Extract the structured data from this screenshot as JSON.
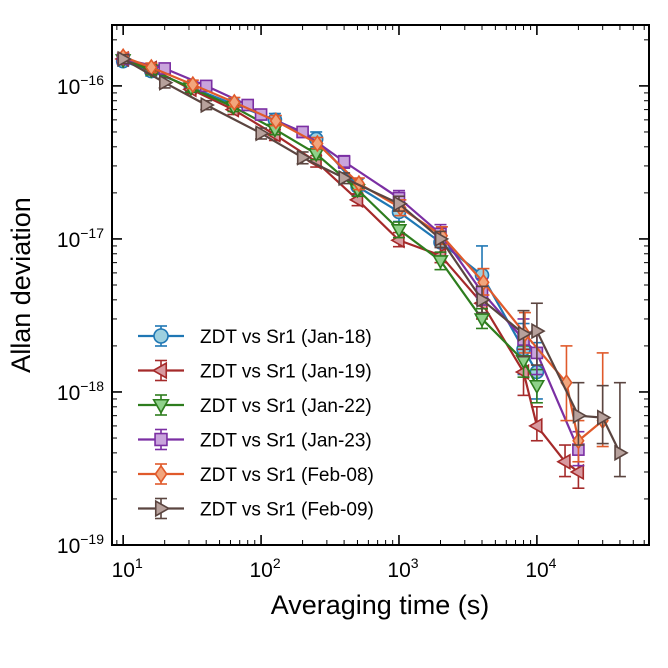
{
  "chart_data": {
    "type": "scatter",
    "title": "",
    "xlabel": "Averaging time (s)",
    "ylabel": "Allan deviation",
    "xscale": "log",
    "yscale": "log",
    "xlim": [
      8.3,
      65000
    ],
    "ylim": [
      1e-19,
      2.5e-16
    ],
    "x_ticks": [
      {
        "value": 10,
        "base": "10",
        "exp": "1"
      },
      {
        "value": 100,
        "base": "10",
        "exp": "2"
      },
      {
        "value": 1000,
        "base": "10",
        "exp": "3"
      },
      {
        "value": 10000,
        "base": "10",
        "exp": "4"
      }
    ],
    "y_ticks": [
      {
        "value": 1e-19,
        "base": "10",
        "exp": "−19"
      },
      {
        "value": 1e-18,
        "base": "10",
        "exp": "−18"
      },
      {
        "value": 1e-17,
        "base": "10",
        "exp": "−17"
      },
      {
        "value": 1e-16,
        "base": "10",
        "exp": "−16"
      }
    ],
    "legend_position": "lower-left",
    "series": [
      {
        "name": "ZDT vs Sr1 (Jan-18)",
        "color": "#1f77b4",
        "face": "#9dd0df",
        "marker": "circle",
        "x": [
          10,
          16,
          31,
          63,
          126,
          251,
          501,
          1000,
          2000,
          4000,
          8000,
          10000
        ],
        "y": [
          1.45e-16,
          1.25e-16,
          9.8e-17,
          7.6e-17,
          6e-17,
          4.5e-17,
          2.2e-17,
          1.5e-17,
          9.5e-18,
          5.8e-18,
          1.9e-18,
          1.35e-18
        ],
        "yerr_low": [
          1.35e-16,
          1.16e-16,
          9.2e-17,
          7e-17,
          5.4e-17,
          4e-17,
          1.95e-17,
          1.3e-17,
          8e-18,
          4e-18,
          1.3e-18,
          9e-19
        ],
        "yerr_high": [
          1.55e-16,
          1.34e-16,
          1.05e-16,
          8.2e-17,
          6.6e-17,
          5e-17,
          2.45e-17,
          1.75e-17,
          1.15e-17,
          9e-18,
          2.8e-18,
          2.1e-18
        ]
      },
      {
        "name": "ZDT vs Sr1 (Jan-19)",
        "color": "#a52a2a",
        "face": "#d8999f",
        "marker": "triangle-left",
        "x": [
          10,
          16,
          31,
          63,
          126,
          251,
          501,
          1000,
          2000,
          4000,
          8000,
          10000,
          16000,
          20000
        ],
        "y": [
          1.5e-16,
          1.3e-16,
          9.5e-17,
          7e-17,
          4.8e-17,
          3.2e-17,
          1.8e-17,
          9.8e-18,
          7.8e-18,
          3.8e-18,
          1.35e-18,
          6e-19,
          3.5e-19,
          3e-19
        ],
        "yerr_low": [
          1.4e-16,
          1.21e-16,
          8.9e-17,
          6.5e-17,
          4.4e-17,
          2.95e-17,
          1.65e-17,
          8.9e-18,
          7e-18,
          3e-18,
          9.5e-19,
          4.8e-19,
          2.8e-19,
          2.35e-19
        ],
        "yerr_high": [
          1.6e-16,
          1.4e-16,
          1.02e-16,
          7.6e-17,
          5.2e-17,
          3.5e-17,
          1.97e-17,
          1.1e-17,
          8.8e-18,
          4.8e-18,
          1.9e-18,
          8e-19,
          4.5e-19,
          3.9e-19
        ]
      },
      {
        "name": "ZDT vs Sr1 (Jan-22)",
        "color": "#2e7d1e",
        "face": "#8fd18a",
        "marker": "triangle-down",
        "x": [
          10,
          16,
          31,
          63,
          126,
          251,
          501,
          1000,
          2000,
          4000,
          8000,
          10000
        ],
        "y": [
          1.48e-16,
          1.27e-16,
          9.7e-17,
          7.3e-17,
          5.2e-17,
          3.6e-17,
          2.1e-17,
          1.15e-17,
          7.2e-18,
          3e-18,
          1.6e-18,
          1.1e-18
        ],
        "yerr_low": [
          1.38e-16,
          1.18e-16,
          9.1e-17,
          6.8e-17,
          4.8e-17,
          3.3e-17,
          1.9e-17,
          1.02e-17,
          6.3e-18,
          2.6e-18,
          1.25e-18,
          8.5e-19
        ],
        "yerr_high": [
          1.58e-16,
          1.36e-16,
          1.04e-16,
          7.9e-17,
          5.6e-17,
          3.9e-17,
          2.3e-17,
          1.29e-17,
          8.2e-18,
          3.5e-18,
          2e-18,
          1.4e-18
        ]
      },
      {
        "name": "ZDT vs Sr1 (Jan-23)",
        "color": "#7b2fa3",
        "face": "#c9a4dc",
        "marker": "square",
        "x": [
          10,
          20,
          40,
          80,
          100,
          200,
          400,
          1000,
          2000,
          4000,
          8000,
          10000,
          20000
        ],
        "y": [
          1.5e-16,
          1.3e-16,
          1e-16,
          7.5e-17,
          6.5e-17,
          5e-17,
          3.2e-17,
          1.85e-17,
          1.08e-17,
          4.5e-18,
          2.2e-18,
          1.8e-18,
          4.2e-19
        ],
        "yerr_low": [
          1.4e-16,
          1.21e-16,
          9.4e-17,
          7e-17,
          6e-17,
          4.6e-17,
          2.9e-17,
          1.65e-17,
          9.4e-18,
          3.7e-18,
          1.7e-18,
          1.3e-18,
          3.3e-19
        ],
        "yerr_high": [
          1.6e-16,
          1.4e-16,
          1.07e-16,
          8e-17,
          7e-17,
          5.4e-17,
          3.5e-17,
          2.07e-17,
          1.24e-17,
          5.5e-18,
          3e-18,
          2.5e-18,
          5.5e-19
        ]
      },
      {
        "name": "ZDT vs Sr1 (Feb-08)",
        "color": "#e05a2b",
        "face": "#f2a57c",
        "marker": "diamond",
        "x": [
          10,
          16,
          32,
          64,
          128,
          256,
          512,
          1024,
          2048,
          4096,
          8192,
          16384,
          20000,
          30000
        ],
        "y": [
          1.55e-16,
          1.32e-16,
          1.02e-16,
          7.8e-17,
          5.9e-17,
          4.2e-17,
          2.3e-17,
          1.6e-17,
          1.05e-17,
          5.2e-18,
          2.4e-18,
          1.15e-18,
          4.8e-19,
          6.5e-19
        ],
        "yerr_low": [
          1.45e-16,
          1.23e-16,
          9.6e-17,
          7.3e-17,
          5.5e-17,
          3.9e-17,
          2.1e-17,
          1.42e-17,
          9.2e-18,
          4.3e-18,
          1.8e-18,
          6.5e-19,
          3.5e-19,
          4.4e-19
        ],
        "yerr_high": [
          1.65e-16,
          1.41e-16,
          1.09e-16,
          8.4e-17,
          6.4e-17,
          4.6e-17,
          2.5e-17,
          1.8e-17,
          1.2e-17,
          6.4e-18,
          3.3e-18,
          2e-18,
          6.5e-19,
          1.8e-18
        ]
      },
      {
        "name": "ZDT vs Sr1 (Feb-09)",
        "color": "#5b4540",
        "face": "#b7a19c",
        "marker": "triangle-right",
        "x": [
          10,
          20,
          40,
          100,
          200,
          400,
          1000,
          2000,
          4000,
          8000,
          10000,
          20000,
          30000,
          40000
        ],
        "y": [
          1.5e-16,
          1.05e-16,
          7.5e-17,
          4.9e-17,
          3.4e-17,
          2.5e-17,
          1.7e-17,
          1e-17,
          4e-18,
          2.4e-18,
          2.5e-18,
          7e-19,
          6.8e-19,
          4e-19
        ],
        "yerr_low": [
          1.4e-16,
          9.7e-17,
          7e-17,
          4.5e-17,
          3.1e-17,
          2.3e-17,
          1.52e-17,
          8.8e-18,
          3.3e-18,
          1.7e-18,
          1.5e-18,
          4.5e-19,
          4.6e-19,
          2.8e-19
        ],
        "yerr_high": [
          1.6e-16,
          1.13e-16,
          8e-17,
          5.3e-17,
          3.7e-17,
          2.7e-17,
          1.9e-17,
          1.12e-17,
          4.9e-18,
          3.4e-18,
          3.8e-18,
          1.15e-18,
          1.1e-18,
          1.15e-18
        ]
      }
    ]
  }
}
